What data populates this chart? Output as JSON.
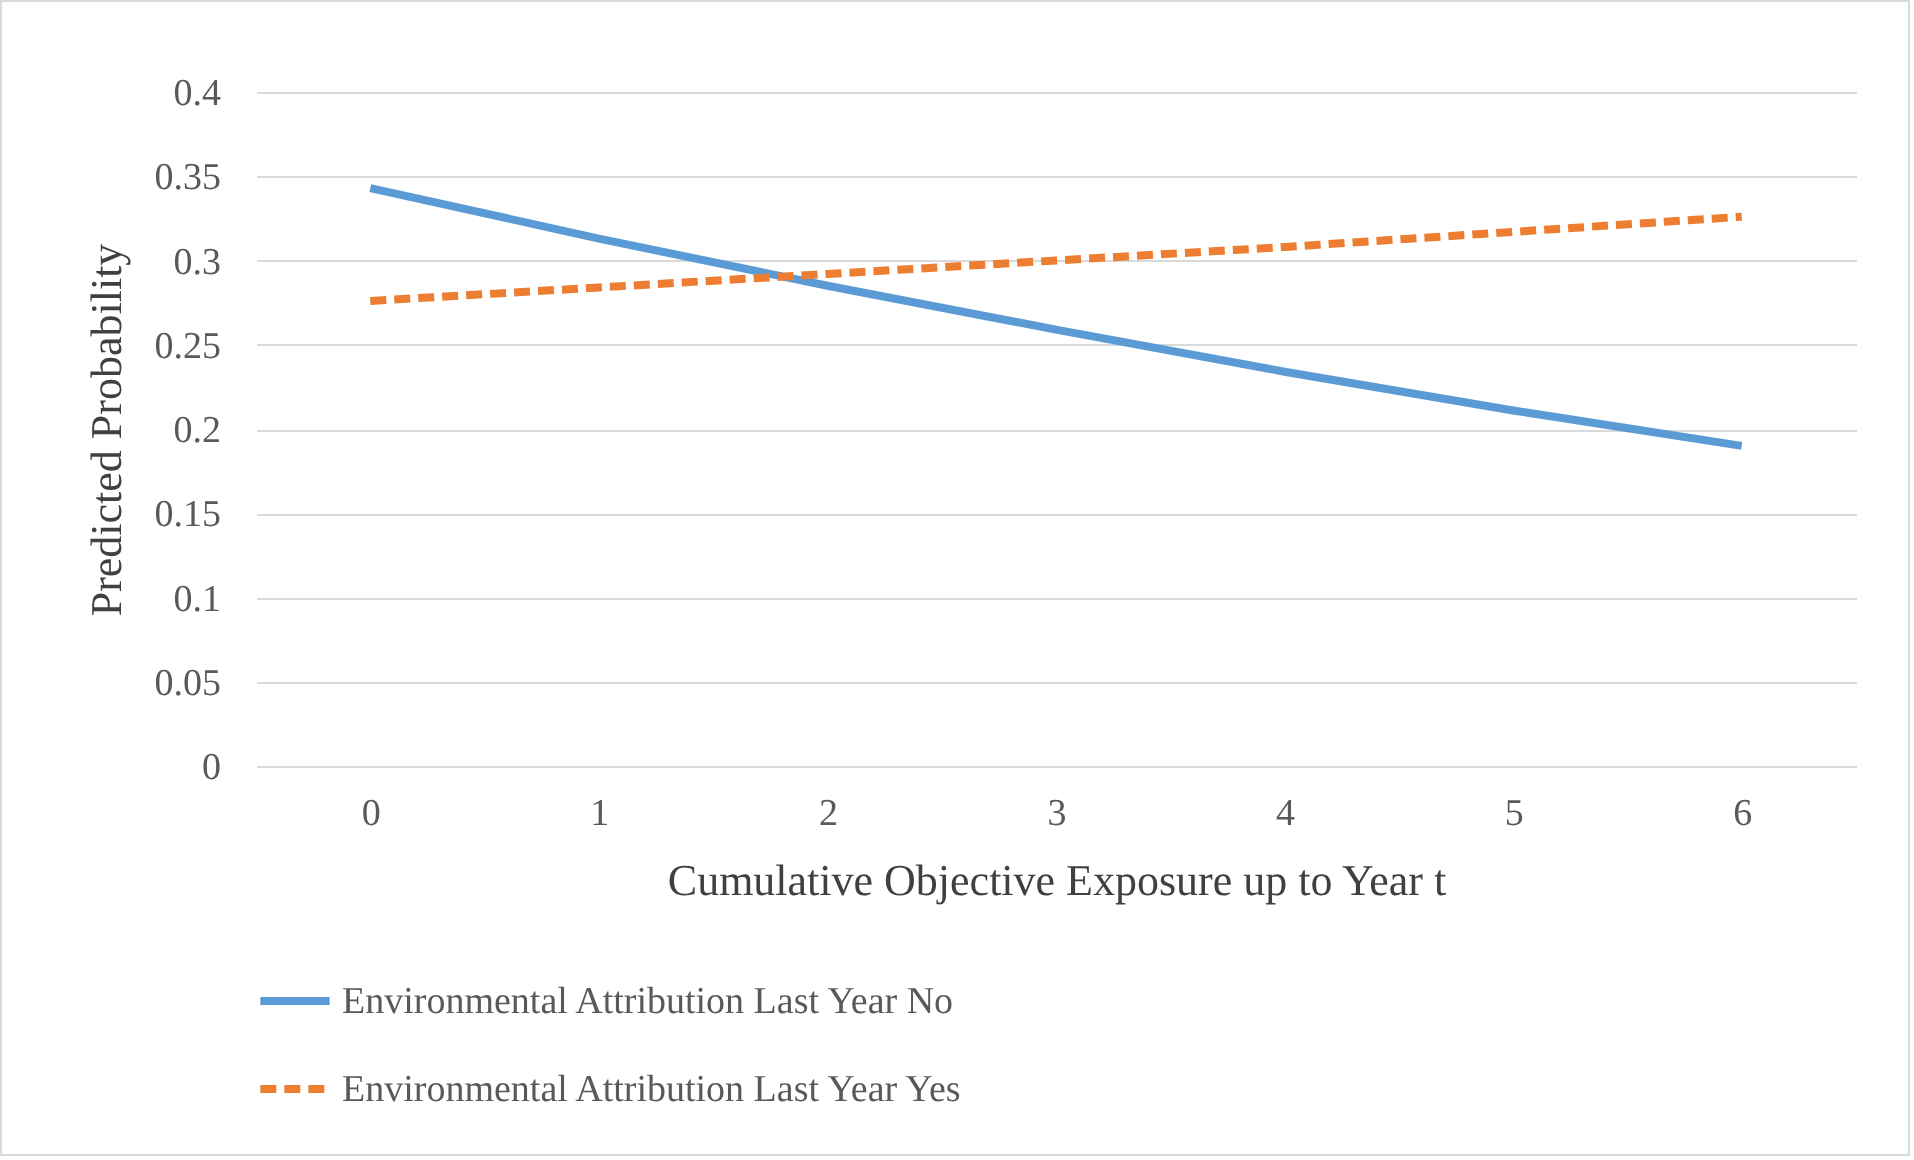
{
  "chart_data": {
    "type": "line",
    "xlabel": "Cumulative Objective Exposure up to Year t",
    "ylabel": "Predicted Probability",
    "categories": [
      "0",
      "1",
      "2",
      "3",
      "4",
      "5",
      "6"
    ],
    "ylim": [
      0,
      0.4
    ],
    "yticks": [
      {
        "value": 0,
        "label": "0"
      },
      0.05,
      {
        "value": 0.1,
        "label": "0.1"
      },
      0.15,
      {
        "value": 0.2,
        "label": "0.2"
      },
      0.25,
      {
        "value": 0.3,
        "label": "0.3"
      },
      0.35,
      {
        "value": 0.4,
        "label": "0.4"
      }
    ],
    "grid": "y",
    "legend": "bottom",
    "marker": "none",
    "series": [
      {
        "name": "Environmental Attribution Last Year No",
        "color": "#5b9bd5",
        "line_style": "solid",
        "values": [
          0.343,
          0.313,
          0.285,
          0.259,
          0.234,
          0.211,
          0.19
        ]
      },
      {
        "name": "Environmental Attribution Last Year Yes",
        "color": "#ed7d31",
        "line_style": "dashed",
        "values": [
          0.276,
          0.284,
          0.292,
          0.3,
          0.308,
          0.317,
          0.326
        ]
      }
    ]
  }
}
